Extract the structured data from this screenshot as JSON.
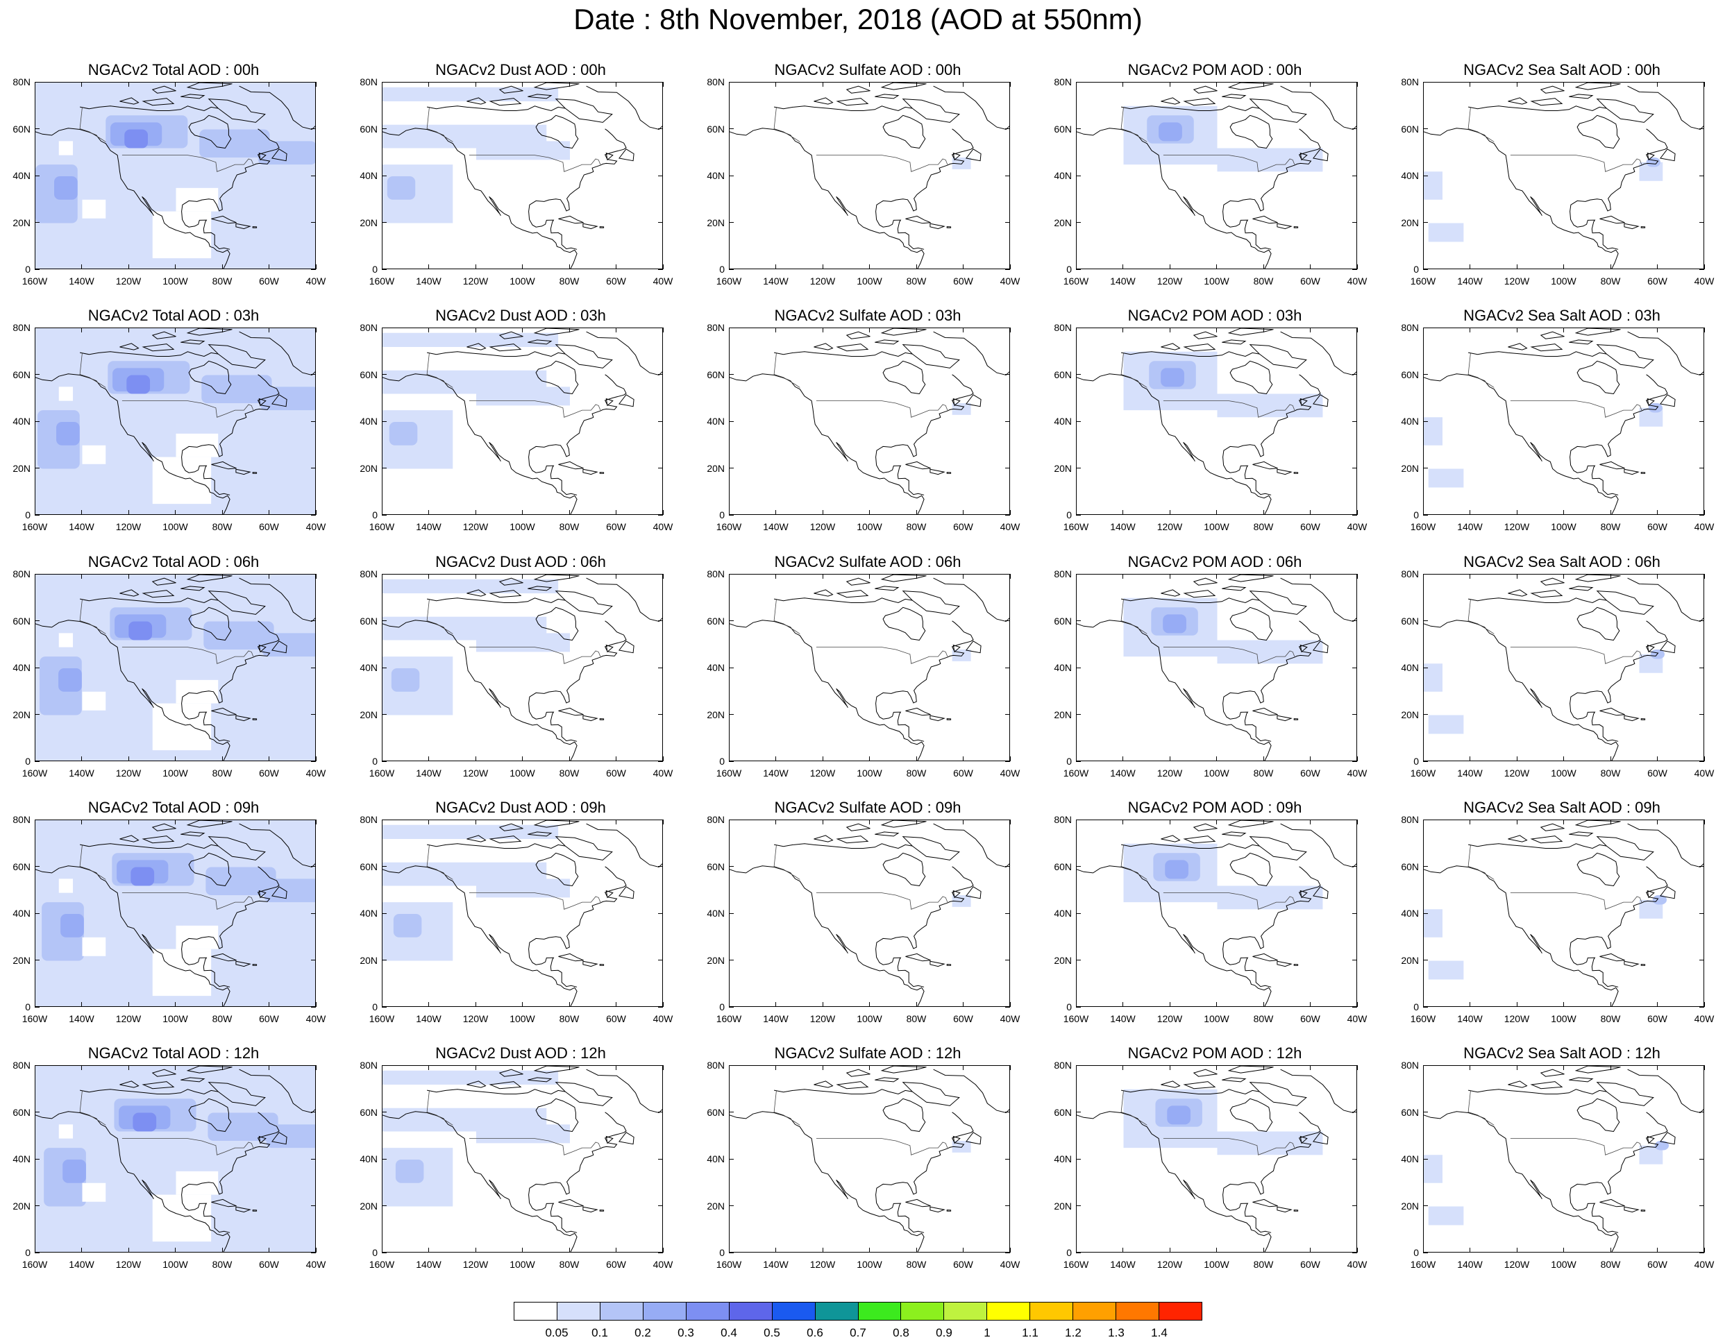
{
  "figure": {
    "title": "Date : 8th November, 2018 (AOD at 550nm)"
  },
  "axes": {
    "lat_ticks": [
      "80N",
      "60N",
      "40N",
      "20N",
      "0"
    ],
    "lon_ticks": [
      "160W",
      "140W",
      "120W",
      "100W",
      "80W",
      "60W",
      "40W"
    ],
    "lon_range_deg": [
      -160,
      -40
    ],
    "lat_range_deg": [
      0,
      80
    ]
  },
  "columns": [
    "Total",
    "Dust",
    "Sulfate",
    "POM",
    "Sea Salt"
  ],
  "rows": [
    "00h",
    "03h",
    "06h",
    "09h",
    "12h"
  ],
  "panels": [
    {
      "title": "NGACv2 Total AOD : 00h",
      "species": "Total",
      "hour": "00h"
    },
    {
      "title": "NGACv2 Dust AOD : 00h",
      "species": "Dust",
      "hour": "00h"
    },
    {
      "title": "NGACv2 Sulfate AOD : 00h",
      "species": "Sulfate",
      "hour": "00h"
    },
    {
      "title": "NGACv2 POM AOD : 00h",
      "species": "POM",
      "hour": "00h"
    },
    {
      "title": "NGACv2 Sea Salt AOD : 00h",
      "species": "Sea Salt",
      "hour": "00h"
    },
    {
      "title": "NGACv2 Total AOD : 03h",
      "species": "Total",
      "hour": "03h"
    },
    {
      "title": "NGACv2 Dust AOD : 03h",
      "species": "Dust",
      "hour": "03h"
    },
    {
      "title": "NGACv2 Sulfate AOD : 03h",
      "species": "Sulfate",
      "hour": "03h"
    },
    {
      "title": "NGACv2 POM AOD : 03h",
      "species": "POM",
      "hour": "03h"
    },
    {
      "title": "NGACv2 Sea Salt AOD : 03h",
      "species": "Sea Salt",
      "hour": "03h"
    },
    {
      "title": "NGACv2 Total AOD : 06h",
      "species": "Total",
      "hour": "06h"
    },
    {
      "title": "NGACv2 Dust AOD : 06h",
      "species": "Dust",
      "hour": "06h"
    },
    {
      "title": "NGACv2 Sulfate AOD : 06h",
      "species": "Sulfate",
      "hour": "06h"
    },
    {
      "title": "NGACv2 POM AOD : 06h",
      "species": "POM",
      "hour": "06h"
    },
    {
      "title": "NGACv2 Sea Salt AOD : 06h",
      "species": "Sea Salt",
      "hour": "06h"
    },
    {
      "title": "NGACv2 Total AOD : 09h",
      "species": "Total",
      "hour": "09h"
    },
    {
      "title": "NGACv2 Dust AOD : 09h",
      "species": "Dust",
      "hour": "09h"
    },
    {
      "title": "NGACv2 Sulfate AOD : 09h",
      "species": "Sulfate",
      "hour": "09h"
    },
    {
      "title": "NGACv2 POM AOD : 09h",
      "species": "POM",
      "hour": "09h"
    },
    {
      "title": "NGACv2 Sea Salt  AOD : 09h",
      "species": "Sea Salt",
      "hour": "09h"
    },
    {
      "title": "NGACv2 Total AOD  : 12h",
      "species": "Total",
      "hour": "12h"
    },
    {
      "title": "NGACv2 Dust AOD : 12h",
      "species": "Dust",
      "hour": "12h"
    },
    {
      "title": "NGACv2 Sulfate AOD : 12h",
      "species": "Sulfate",
      "hour": "12h"
    },
    {
      "title": "NGACv2 POM  AOD : 12h",
      "species": "POM",
      "hour": "12h"
    },
    {
      "title": "NGACv2 Sea Salt  AOD : 12h",
      "species": "Sea Salt",
      "hour": "12h"
    }
  ],
  "colorbar": {
    "labels": [
      "0.05",
      "0.1",
      "0.2",
      "0.3",
      "0.4",
      "0.5",
      "0.6",
      "0.7",
      "0.8",
      "0.9",
      "1",
      "1.1",
      "1.2",
      "1.3",
      "1.4"
    ],
    "colors": [
      "#ffffff",
      "#d6e0fb",
      "#b4c5f7",
      "#97acf5",
      "#7d8ff2",
      "#5e66ea",
      "#1a5af0",
      "#0f9598",
      "#3cea1e",
      "#8cf01e",
      "#bff23f",
      "#ffff00",
      "#ffc800",
      "#ffa000",
      "#ff7800",
      "#ff2400"
    ]
  }
}
